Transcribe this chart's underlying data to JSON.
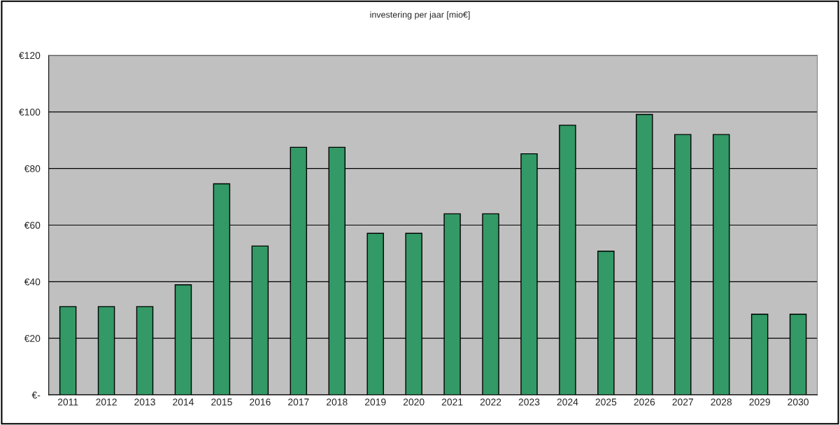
{
  "chart_data": {
    "type": "bar",
    "title": "investering per jaar [mio€]",
    "categories": [
      "2011",
      "2012",
      "2013",
      "2014",
      "2015",
      "2016",
      "2017",
      "2018",
      "2019",
      "2020",
      "2021",
      "2022",
      "2023",
      "2024",
      "2025",
      "2026",
      "2027",
      "2028",
      "2029",
      "2030"
    ],
    "values": [
      31.2,
      31.2,
      31.2,
      38.9,
      74.6,
      52.6,
      87.5,
      87.5,
      57.1,
      57.1,
      64.0,
      64.0,
      85.2,
      95.3,
      50.8,
      99.1,
      92.0,
      92.0,
      28.5,
      28.5
    ],
    "color": "#339966",
    "ylim": [
      0,
      120
    ],
    "yticks": [
      {
        "value": 0,
        "label": "€-"
      },
      {
        "value": 20,
        "label": "€20"
      },
      {
        "value": 40,
        "label": "€40"
      },
      {
        "value": 60,
        "label": "€60"
      },
      {
        "value": 80,
        "label": "€80"
      },
      {
        "value": 100,
        "label": "€100"
      },
      {
        "value": 120,
        "label": "€120"
      }
    ],
    "grid": "y"
  }
}
